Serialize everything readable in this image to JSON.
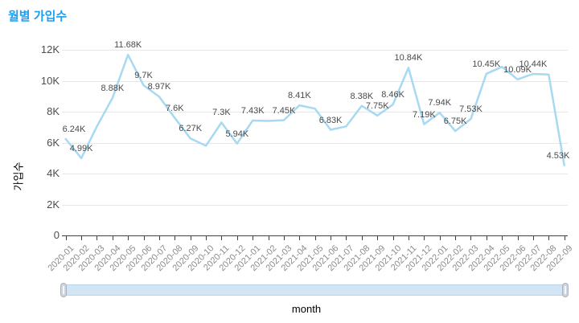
{
  "header": {
    "title": "월별 가입수",
    "title_color": "#1b9ff2"
  },
  "chart_data": {
    "type": "line",
    "title": "월별 가입수",
    "xlabel": "month",
    "ylabel": "가입수",
    "unit": "K",
    "x": [
      "2020-01",
      "2020-02",
      "2020-03",
      "2020-04",
      "2020-05",
      "2020-06",
      "2020-07",
      "2020-08",
      "2020-09",
      "2020-10",
      "2020-11",
      "2020-12",
      "2021-01",
      "2021-02",
      "2021-03",
      "2021-04",
      "2021-05",
      "2021-06",
      "2021-07",
      "2021-08",
      "2021-09",
      "2021-10",
      "2021-11",
      "2021-12",
      "2022-01",
      "2022-02",
      "2022-03",
      "2022-04",
      "2022-05",
      "2022-06",
      "2022-07",
      "2022-08",
      "2022-09"
    ],
    "values": [
      6.24,
      4.99,
      7.05,
      8.88,
      11.68,
      9.7,
      8.97,
      7.6,
      6.27,
      5.8,
      7.3,
      5.94,
      7.43,
      7.4,
      7.45,
      8.41,
      8.2,
      6.83,
      7.05,
      8.38,
      7.75,
      8.46,
      10.84,
      7.19,
      7.94,
      6.75,
      7.53,
      10.45,
      10.9,
      10.09,
      10.44,
      10.4,
      4.53
    ],
    "point_labels": [
      "6.24K",
      "4.99K",
      null,
      "8.88K",
      "11.68K",
      "9.7K",
      "8.97K",
      "7.6K",
      "6.27K",
      null,
      "7.3K",
      "5.94K",
      "7.43K",
      null,
      "7.45K",
      "8.41K",
      null,
      "6.83K",
      null,
      "8.38K",
      "7.75K",
      "8.46K",
      "10.84K",
      "7.19K",
      "7.94K",
      "6.75K",
      "7.53K",
      "10.45K",
      null,
      "10.09K",
      "10.44K",
      null,
      "4.53K"
    ],
    "unlabeled_points_estimated": true,
    "y_ticks": [
      "0",
      "2K",
      "4K",
      "6K",
      "8K",
      "10K",
      "12K"
    ],
    "ylim": [
      0,
      12.5
    ],
    "grid": "horizontal-only",
    "legend": "none",
    "line_color": "#a7d9f2",
    "data_label_color": "#4a4a4a",
    "y_label_color": "#4d4d4d",
    "x_label_color": "#8c8c8c",
    "axis_color": "#424242",
    "grid_color": "#e7e7e7"
  },
  "scrollbar": {
    "fill": "#d2e5f4",
    "border": "#b9d4e9",
    "handle_fill": "#cfd4dd",
    "range": "full"
  }
}
